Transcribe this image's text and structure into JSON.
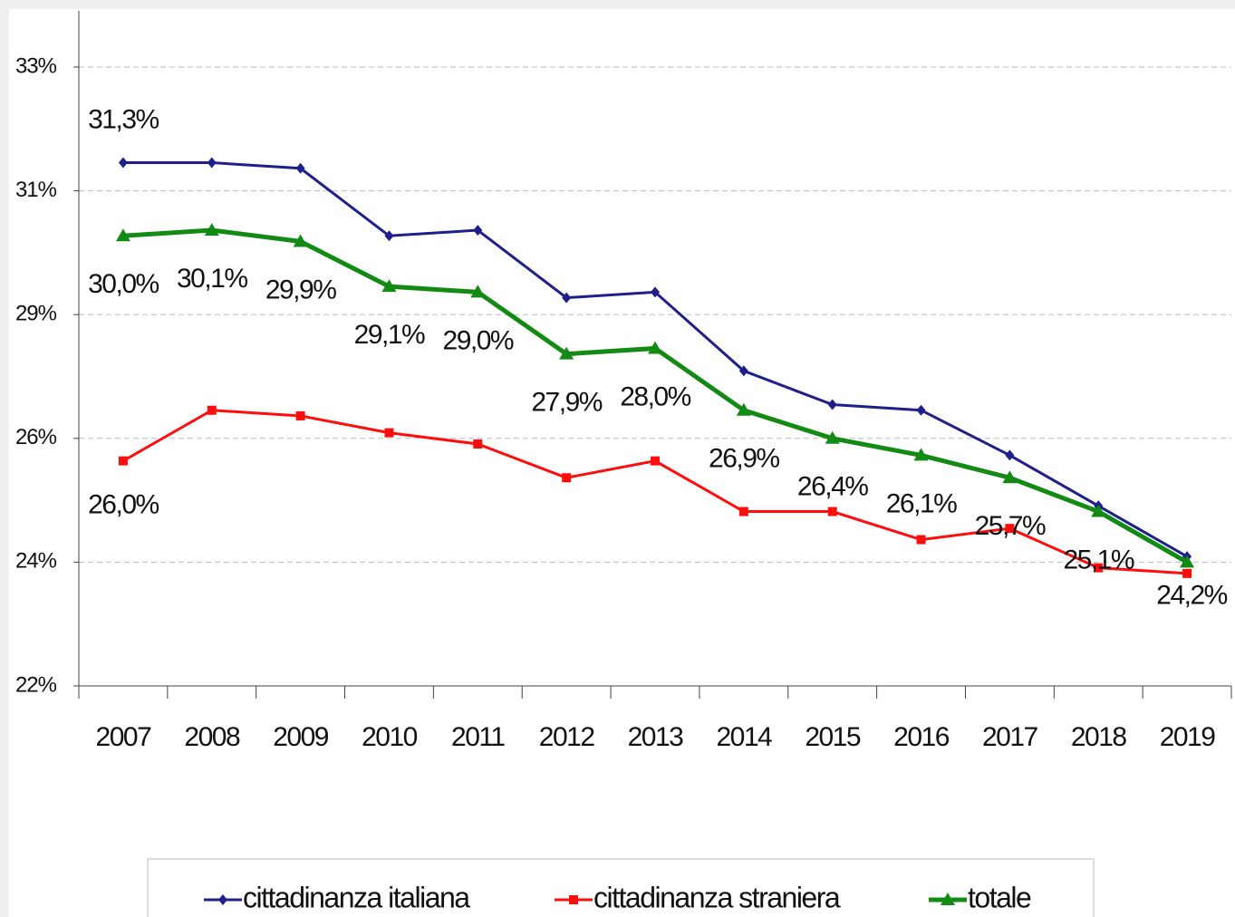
{
  "chart_data": {
    "type": "line",
    "categories": [
      "2007",
      "2008",
      "2009",
      "2010",
      "2011",
      "2012",
      "2013",
      "2014",
      "2015",
      "2016",
      "2017",
      "2018",
      "2019"
    ],
    "series": [
      {
        "name": "cittadinanza italiana",
        "color": "#1f1f8c",
        "marker": "diamond",
        "values": [
          31.3,
          31.3,
          31.2,
          30.0,
          30.1,
          28.9,
          29.0,
          27.6,
          27.0,
          26.9,
          26.1,
          25.2,
          24.3
        ],
        "value_labels": [
          "31,3%",
          null,
          null,
          null,
          null,
          null,
          null,
          null,
          null,
          null,
          null,
          null,
          null
        ]
      },
      {
        "name": "cittadinanza straniera",
        "color": "#ff0d0d",
        "marker": "square",
        "values": [
          26.0,
          26.9,
          26.8,
          26.5,
          26.3,
          25.7,
          26.0,
          25.1,
          25.1,
          24.6,
          24.8,
          24.1,
          24.0
        ],
        "value_labels": [
          "26,0%",
          null,
          null,
          null,
          null,
          null,
          null,
          null,
          null,
          null,
          null,
          null,
          null
        ]
      },
      {
        "name": "totale",
        "color": "#138a13",
        "marker": "triangle",
        "values": [
          30.0,
          30.1,
          29.9,
          29.1,
          29.0,
          27.9,
          28.0,
          26.9,
          26.4,
          26.1,
          25.7,
          25.1,
          24.2
        ],
        "value_labels": [
          "30,0%",
          "30,1%",
          "29,9%",
          "29,1%",
          "29,0%",
          "27,9%",
          "28,0%",
          "26,9%",
          "26,4%",
          "26,1%",
          "25,7%",
          "25,1%",
          "24,2%"
        ]
      }
    ],
    "ylim": [
      22,
      34
    ],
    "yticks": [
      {
        "value": 22,
        "label": "22%"
      },
      {
        "value": 24.2,
        "label": "24%"
      },
      {
        "value": 26.4,
        "label": "26%"
      },
      {
        "value": 28.6,
        "label": "29%"
      },
      {
        "value": 30.8,
        "label": "31%"
      },
      {
        "value": 33,
        "label": "33%"
      }
    ],
    "grid": true,
    "legend": "bottom"
  }
}
